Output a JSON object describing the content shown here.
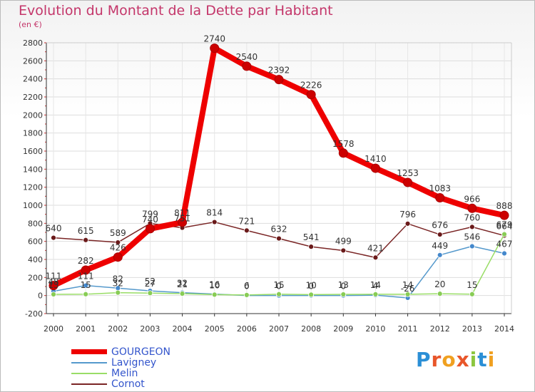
{
  "title": "Evolution du Montant de la Dette par Habitant",
  "subtitle": "(en €)",
  "logo": {
    "text": "Proxiti",
    "letters": [
      "P",
      "r",
      "o",
      "x",
      "i",
      "t",
      "i"
    ],
    "colors": [
      "#2b8fd6",
      "#e8562a",
      "#f0a020",
      "#e8562a",
      "#8cc63f",
      "#2b8fd6",
      "#f0a020"
    ]
  },
  "chart_data": {
    "type": "line",
    "title": "Evolution du Montant de la Dette par Habitant",
    "ylabel": "(en €)",
    "xlabel": "",
    "ylim": [
      -200,
      2800
    ],
    "yticks": [
      -200,
      0,
      200,
      400,
      600,
      800,
      1000,
      1200,
      1400,
      1600,
      1800,
      2000,
      2200,
      2400,
      2600,
      2800
    ],
    "x": [
      "2000",
      "2001",
      "2002",
      "2003",
      "2004",
      "2005",
      "2006",
      "2007",
      "2008",
      "2009",
      "2010",
      "2011",
      "2012",
      "2013",
      "2014"
    ],
    "legend": "bottom-left",
    "series": [
      {
        "name": "GOURGEON",
        "color": "#ee0000",
        "marker": "#cc0000",
        "weight": "heavy",
        "values": [
          111,
          282,
          426,
          740,
          811,
          2740,
          2540,
          2392,
          2226,
          1578,
          1410,
          1253,
          1083,
          966,
          888
        ],
        "labels": [
          "111",
          "282",
          "426",
          "740",
          "811",
          "2740",
          "2540",
          "2392",
          "2226",
          "1578",
          "1410",
          "1253",
          "1083",
          "966",
          "888"
        ]
      },
      {
        "name": "Lavigney",
        "color": "#5599cc",
        "marker": "#4488cc",
        "weight": "thin",
        "values": [
          48,
          111,
          82,
          52,
          32,
          16,
          0,
          0,
          0,
          0,
          4,
          -26,
          449,
          546,
          467
        ],
        "labels": [
          "48",
          "111",
          "82",
          "52",
          "32",
          "16",
          "0",
          "0",
          "0",
          "0",
          "4",
          "-26",
          "449",
          "546",
          "467"
        ]
      },
      {
        "name": "Melin",
        "color": "#99dd66",
        "marker": "#88cc55",
        "weight": "thin",
        "values": [
          13,
          15,
          32,
          27,
          21,
          10,
          6,
          15,
          10,
          13,
          14,
          14,
          20,
          15,
          679
        ],
        "labels": [
          "13",
          "15",
          "32",
          "27",
          "21",
          "10",
          "6",
          "15",
          "10",
          "13",
          "14",
          "14",
          "20",
          "15",
          "679"
        ]
      },
      {
        "name": "Cornot",
        "color": "#7a2525",
        "marker": "#6a1a1a",
        "weight": "thin",
        "values": [
          640,
          615,
          589,
          799,
          751,
          814,
          721,
          632,
          541,
          499,
          421,
          796,
          676,
          760,
          664
        ],
        "labels": [
          "640",
          "615",
          "589",
          "799",
          "751",
          "814",
          "721",
          "632",
          "541",
          "499",
          "421",
          "796",
          "676",
          "760",
          "664"
        ]
      }
    ]
  }
}
